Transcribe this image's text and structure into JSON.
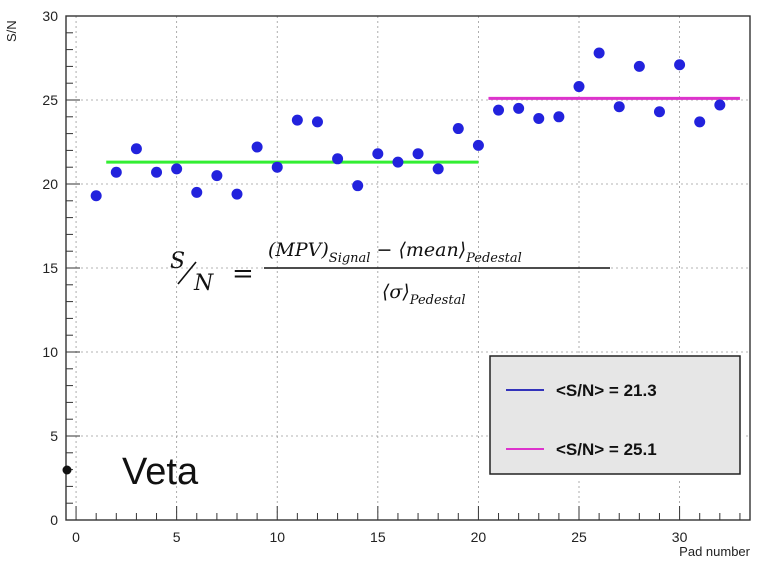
{
  "chart_data": {
    "type": "scatter",
    "xlabel": "Pad number",
    "ylabel": "S/N",
    "xlim": [
      -0.5,
      33.5
    ],
    "ylim": [
      0,
      30
    ],
    "x_ticks": [
      "0",
      "5",
      "10",
      "15",
      "20",
      "25",
      "30"
    ],
    "y_ticks": [
      "0",
      "5",
      "10",
      "15",
      "20",
      "25",
      "30"
    ],
    "grid": true,
    "points": {
      "x": [
        1,
        2,
        3,
        4,
        5,
        6,
        7,
        8,
        9,
        10,
        11,
        12,
        13,
        14,
        15,
        16,
        17,
        18,
        19,
        20,
        21,
        22,
        23,
        24,
        25,
        26,
        27,
        28,
        29,
        30,
        31,
        32
      ],
      "y": [
        19.3,
        20.7,
        22.1,
        20.7,
        20.9,
        19.5,
        20.5,
        19.4,
        22.2,
        21.0,
        23.8,
        23.7,
        21.5,
        19.9,
        21.8,
        21.3,
        21.8,
        20.9,
        23.3,
        22.3,
        24.4,
        24.5,
        23.9,
        24.0,
        25.8,
        27.8,
        24.6,
        27.0,
        24.3,
        27.1,
        23.7,
        24.7
      ],
      "color": "#2222dd"
    },
    "fits": [
      {
        "x_range": [
          1.5,
          20
        ],
        "value": 21.3,
        "color": "#33ee33"
      },
      {
        "x_range": [
          20.5,
          33
        ],
        "value": 25.1,
        "color": "#dd33cc"
      }
    ],
    "legend": {
      "position": "bottom-right",
      "entries": [
        {
          "label": "<S/N> = 21.3",
          "color": "#3333bb"
        },
        {
          "label": "<S/N> = 25.1",
          "color": "#dd33cc"
        }
      ]
    },
    "annotations": {
      "veta": "Veta",
      "formula": {
        "lhs_num": "S",
        "lhs_den": "N",
        "equals": "=",
        "numerator": "(MPV)",
        "num_sub1": "Signal",
        "minus": " − ⟨mean⟩",
        "num_sub2": "Pedestal",
        "denominator": "⟨σ⟩",
        "den_sub": "Pedestal"
      }
    }
  }
}
